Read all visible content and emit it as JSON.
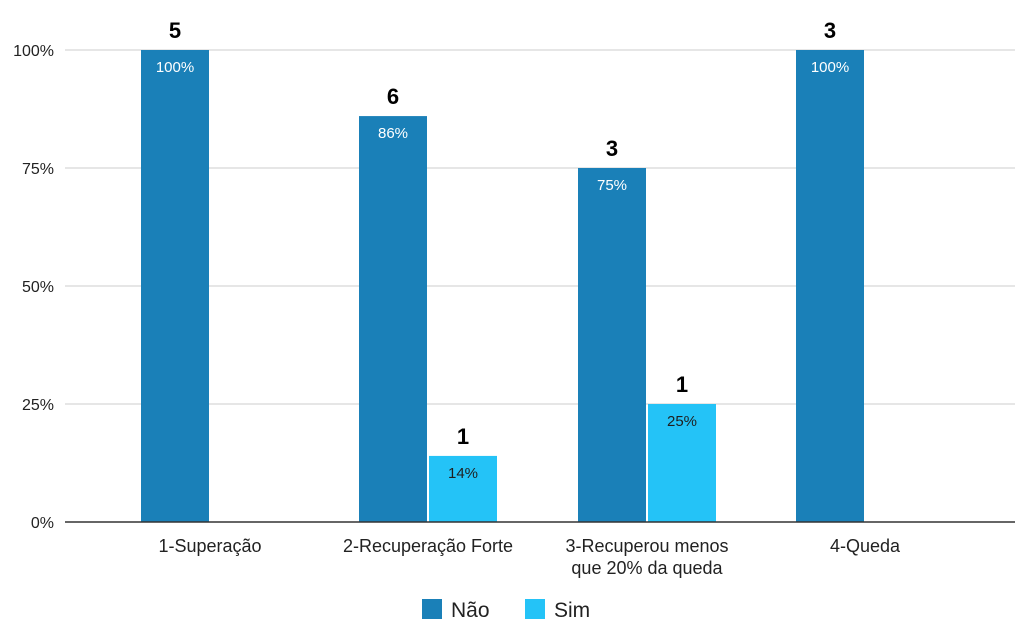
{
  "chart_data": {
    "type": "bar",
    "categories": [
      [
        "1-Superação"
      ],
      [
        "2-Recuperação Forte"
      ],
      [
        "3-Recuperou menos",
        "que 20% da queda"
      ],
      [
        "4-Queda"
      ]
    ],
    "series": [
      {
        "name": "Não",
        "color": "#1a80b8",
        "values": [
          100,
          86,
          75,
          100
        ],
        "value_labels": [
          "100%",
          "86%",
          "75%",
          "100%"
        ],
        "counts": [
          5,
          6,
          3,
          3
        ]
      },
      {
        "name": "Sim",
        "color": "#24c3f7",
        "values": [
          null,
          14,
          25,
          null
        ],
        "value_labels": [
          null,
          "14%",
          "25%",
          null
        ],
        "counts": [
          null,
          1,
          1,
          null
        ]
      }
    ],
    "yticks": [
      "0%",
      "25%",
      "50%",
      "75%",
      "100%"
    ],
    "ylim": [
      0,
      100
    ],
    "grid": true,
    "legend_position": "bottom",
    "gridline_color": "#cccccc",
    "axis_color": "#333333"
  }
}
